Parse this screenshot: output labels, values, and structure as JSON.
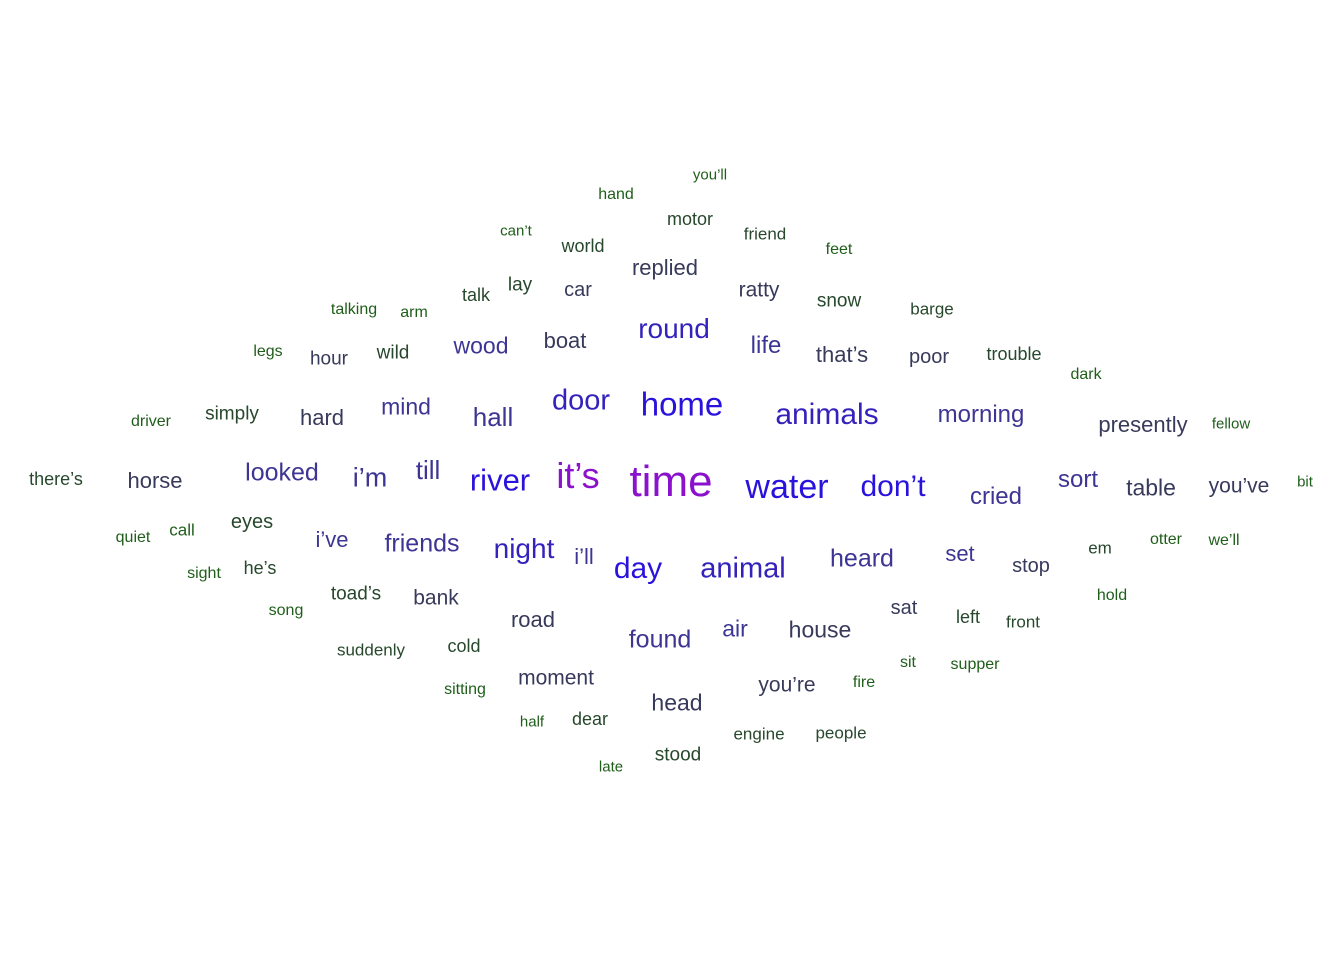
{
  "palette": {
    "purple": "#8a12cc",
    "blue": "#2a12dd",
    "indigo": "#3d3593",
    "slate": "#373a5a",
    "dark_green": "#27482c",
    "green": "#1f5e1a"
  },
  "words": [
    {
      "text": "time",
      "color": "#8a12cc"
    },
    {
      "text": "it’s",
      "color": "#8a12cc"
    },
    {
      "text": "water",
      "color": "#2a12dd"
    },
    {
      "text": "river",
      "color": "#2a12dd"
    },
    {
      "text": "home",
      "color": "#2a12dd"
    },
    {
      "text": "don’t",
      "color": "#2a12dd"
    },
    {
      "text": "day",
      "color": "#2a12dd"
    },
    {
      "text": "animals",
      "color": "#3322bb"
    },
    {
      "text": "door",
      "color": "#3322bb"
    },
    {
      "text": "animal",
      "color": "#3322bb"
    },
    {
      "text": "night",
      "color": "#3322bb"
    },
    {
      "text": "round",
      "color": "#3322bb"
    },
    {
      "text": "till",
      "color": "#3d3593"
    },
    {
      "text": "i’m",
      "color": "#3d3593"
    },
    {
      "text": "hall",
      "color": "#3d3593"
    },
    {
      "text": "looked",
      "color": "#3d3593"
    },
    {
      "text": "friends",
      "color": "#3d3593"
    },
    {
      "text": "heard",
      "color": "#3d3593"
    },
    {
      "text": "found",
      "color": "#3d3593"
    },
    {
      "text": "morning",
      "color": "#3d3593"
    },
    {
      "text": "cried",
      "color": "#3d3593"
    },
    {
      "text": "sort",
      "color": "#3d3593"
    },
    {
      "text": "life",
      "color": "#3d3593"
    },
    {
      "text": "mind",
      "color": "#3d3593"
    },
    {
      "text": "wood",
      "color": "#3d3593"
    },
    {
      "text": "air",
      "color": "#3d3593"
    },
    {
      "text": "set",
      "color": "#3d3593"
    },
    {
      "text": "i’ve",
      "color": "#3d3593"
    },
    {
      "text": "i’ll",
      "color": "#3d3593"
    },
    {
      "text": "that’s",
      "color": "#373a5a"
    },
    {
      "text": "house",
      "color": "#373a5a"
    },
    {
      "text": "table",
      "color": "#373a5a"
    },
    {
      "text": "head",
      "color": "#373a5a"
    },
    {
      "text": "replied",
      "color": "#373a5a"
    },
    {
      "text": "boat",
      "color": "#373a5a"
    },
    {
      "text": "hard",
      "color": "#373a5a"
    },
    {
      "text": "horse",
      "color": "#373a5a"
    },
    {
      "text": "presently",
      "color": "#373a5a"
    },
    {
      "text": "moment",
      "color": "#373a5a"
    },
    {
      "text": "road",
      "color": "#373a5a"
    },
    {
      "text": "you’ve",
      "color": "#373a5a"
    },
    {
      "text": "bank",
      "color": "#373a5a"
    },
    {
      "text": "ratty",
      "color": "#373a5a"
    },
    {
      "text": "you’re",
      "color": "#373a5a"
    },
    {
      "text": "stop",
      "color": "#373a5a"
    },
    {
      "text": "poor",
      "color": "#373a5a"
    },
    {
      "text": "car",
      "color": "#373a5a"
    },
    {
      "text": "hour",
      "color": "#373a5a"
    },
    {
      "text": "sat",
      "color": "#373a5a"
    },
    {
      "text": "snow",
      "color": "#27482c"
    },
    {
      "text": "toad’s",
      "color": "#27482c"
    },
    {
      "text": "eyes",
      "color": "#27482c"
    },
    {
      "text": "simply",
      "color": "#27482c"
    },
    {
      "text": "stood",
      "color": "#27482c"
    },
    {
      "text": "motor",
      "color": "#27482c"
    },
    {
      "text": "left",
      "color": "#27482c"
    },
    {
      "text": "wild",
      "color": "#27482c"
    },
    {
      "text": "lay",
      "color": "#27482c"
    },
    {
      "text": "he’s",
      "color": "#27482c"
    },
    {
      "text": "trouble",
      "color": "#27482c"
    },
    {
      "text": "there’s",
      "color": "#27482c"
    },
    {
      "text": "dear",
      "color": "#27482c"
    },
    {
      "text": "em",
      "color": "#27482c"
    },
    {
      "text": "talk",
      "color": "#27482c"
    },
    {
      "text": "world",
      "color": "#27482c"
    },
    {
      "text": "friend",
      "color": "#27482c"
    },
    {
      "text": "front",
      "color": "#27482c"
    },
    {
      "text": "suddenly",
      "color": "#27482c"
    },
    {
      "text": "cold",
      "color": "#27482c"
    },
    {
      "text": "barge",
      "color": "#27482c"
    },
    {
      "text": "engine",
      "color": "#27482c"
    },
    {
      "text": "people",
      "color": "#27482c"
    },
    {
      "text": "supper",
      "color": "#1f5e1a"
    },
    {
      "text": "talking",
      "color": "#1f5e1a"
    },
    {
      "text": "arm",
      "color": "#1f5e1a"
    },
    {
      "text": "feet",
      "color": "#1f5e1a"
    },
    {
      "text": "hand",
      "color": "#1f5e1a"
    },
    {
      "text": "song",
      "color": "#1f5e1a"
    },
    {
      "text": "fire",
      "color": "#1f5e1a"
    },
    {
      "text": "sitting",
      "color": "#1f5e1a"
    },
    {
      "text": "otter",
      "color": "#1f5e1a"
    },
    {
      "text": "we’ll",
      "color": "#1f5e1a"
    },
    {
      "text": "call",
      "color": "#1f5e1a"
    },
    {
      "text": "driver",
      "color": "#1f5e1a"
    },
    {
      "text": "dark",
      "color": "#1f5e1a"
    },
    {
      "text": "legs",
      "color": "#1f5e1a"
    },
    {
      "text": "hold",
      "color": "#1f5e1a"
    },
    {
      "text": "sit",
      "color": "#1f5e1a"
    },
    {
      "text": "quiet",
      "color": "#1f5e1a"
    },
    {
      "text": "sight",
      "color": "#1f5e1a"
    },
    {
      "text": "can’t",
      "color": "#1f5e1a"
    },
    {
      "text": "you’ll",
      "color": "#1f5e1a"
    },
    {
      "text": "half",
      "color": "#1f5e1a"
    },
    {
      "text": "late",
      "color": "#1f5e1a"
    },
    {
      "text": "fellow",
      "color": "#1f5e1a"
    },
    {
      "text": "bit",
      "color": "#1f5e1a"
    }
  ]
}
